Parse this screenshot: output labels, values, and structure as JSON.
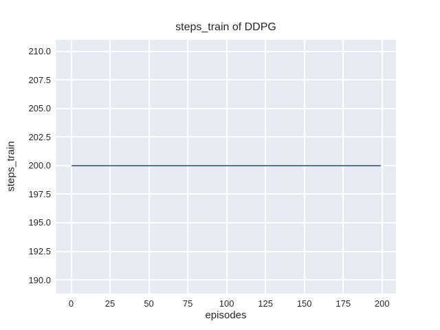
{
  "figure": {
    "colors": {
      "background": "#ffffff",
      "plot_background": "#eaeaf2",
      "grid": "#ffffff",
      "text": "#262626",
      "line": "#4c72b0"
    }
  },
  "chart_data": {
    "type": "line",
    "title": "steps_train of DDPG",
    "xlabel": "episodes",
    "ylabel": "steps_train",
    "x_ticks": [
      0,
      25,
      50,
      75,
      100,
      125,
      150,
      175,
      200
    ],
    "y_ticks": [
      190.0,
      192.5,
      195.0,
      197.5,
      200.0,
      202.5,
      205.0,
      207.5,
      210.0
    ],
    "y_tick_decimals": 1,
    "xlim": [
      -9.95,
      208.95
    ],
    "ylim": [
      188.8,
      211.0
    ],
    "grid": true,
    "legend_position": "none",
    "series": [
      {
        "name": "steps_train",
        "color": "#4c72b0",
        "x": [
          0,
          199
        ],
        "y": [
          200,
          200
        ],
        "description": "constant line: steps_train = 200 for episodes 0 through 199"
      }
    ]
  }
}
